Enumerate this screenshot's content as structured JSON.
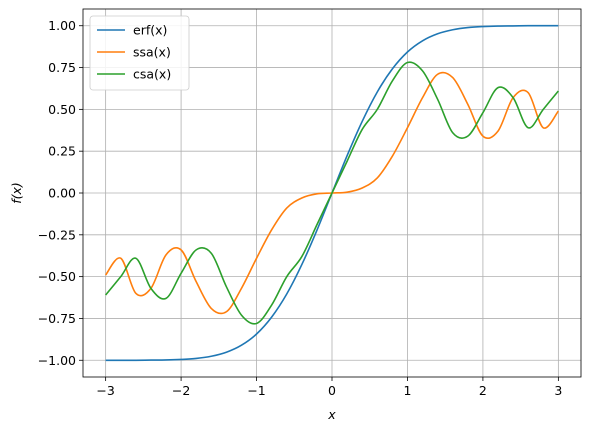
{
  "chart_data": {
    "type": "line",
    "xlabel": "x",
    "ylabel": "f(x)",
    "xlim": [
      -3.3,
      3.3
    ],
    "ylim": [
      -1.1,
      1.1
    ],
    "grid": true,
    "legend_position": "top-left",
    "xticks": [
      -3,
      -2,
      -1,
      0,
      1,
      2,
      3
    ],
    "xtick_labels": [
      "−3",
      "−2",
      "−1",
      "0",
      "1",
      "2",
      "3"
    ],
    "yticks": [
      -1.0,
      -0.75,
      -0.5,
      -0.25,
      0.0,
      0.25,
      0.5,
      0.75,
      1.0
    ],
    "ytick_labels": [
      "−1.00",
      "−0.75",
      "−0.50",
      "−0.25",
      "0.00",
      "0.25",
      "0.50",
      "0.75",
      "1.00"
    ],
    "x": [
      -3.0,
      -2.8,
      -2.6,
      -2.4,
      -2.2,
      -2.0,
      -1.8,
      -1.6,
      -1.4,
      -1.2,
      -1.0,
      -0.8,
      -0.6,
      -0.4,
      -0.2,
      0.0,
      0.2,
      0.4,
      0.6,
      0.8,
      1.0,
      1.2,
      1.4,
      1.6,
      1.8,
      2.0,
      2.2,
      2.4,
      2.6,
      2.8,
      3.0
    ],
    "series": [
      {
        "name": "erf(x)",
        "color": "#1f77b4",
        "values": [
          -1.0,
          -1.0,
          -1.0,
          -0.999,
          -0.998,
          -0.995,
          -0.989,
          -0.976,
          -0.952,
          -0.91,
          -0.843,
          -0.742,
          -0.604,
          -0.428,
          -0.223,
          0.0,
          0.223,
          0.428,
          0.604,
          0.742,
          0.843,
          0.91,
          0.952,
          0.976,
          0.989,
          0.995,
          0.998,
          0.999,
          1.0,
          1.0,
          1.0
        ]
      },
      {
        "name": "ssa(x)",
        "color": "#ff7f0e",
        "values": [
          -0.49,
          -0.39,
          -0.6,
          -0.57,
          -0.37,
          -0.34,
          -0.53,
          -0.69,
          -0.71,
          -0.57,
          -0.39,
          -0.22,
          -0.09,
          -0.03,
          -0.005,
          0.0,
          0.005,
          0.03,
          0.09,
          0.22,
          0.39,
          0.57,
          0.71,
          0.69,
          0.53,
          0.34,
          0.37,
          0.57,
          0.6,
          0.39,
          0.49
        ]
      },
      {
        "name": "csa(x)",
        "color": "#2ca02c",
        "values": [
          -0.61,
          -0.5,
          -0.39,
          -0.57,
          -0.63,
          -0.48,
          -0.34,
          -0.36,
          -0.56,
          -0.73,
          -0.78,
          -0.67,
          -0.5,
          -0.38,
          -0.19,
          0.0,
          0.19,
          0.38,
          0.5,
          0.67,
          0.78,
          0.73,
          0.56,
          0.36,
          0.34,
          0.48,
          0.63,
          0.57,
          0.39,
          0.5,
          0.61
        ]
      }
    ]
  }
}
